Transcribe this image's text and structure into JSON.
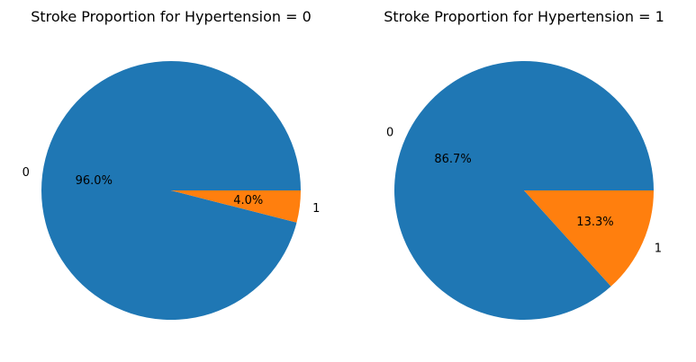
{
  "chart_data": [
    {
      "type": "pie",
      "title": "Stroke Proportion for Hypertension = 0",
      "categories": [
        "0",
        "1"
      ],
      "values": [
        96.0,
        4.0
      ],
      "percent_labels": [
        "96.0%",
        "4.0%"
      ],
      "colors": [
        "#1f77b4",
        "#ff7f0e"
      ]
    },
    {
      "type": "pie",
      "title": "Stroke Proportion for Hypertension = 1",
      "categories": [
        "0",
        "1"
      ],
      "values": [
        86.7,
        13.3
      ],
      "percent_labels": [
        "86.7%",
        "13.3%"
      ],
      "colors": [
        "#1f77b4",
        "#ff7f0e"
      ]
    }
  ]
}
